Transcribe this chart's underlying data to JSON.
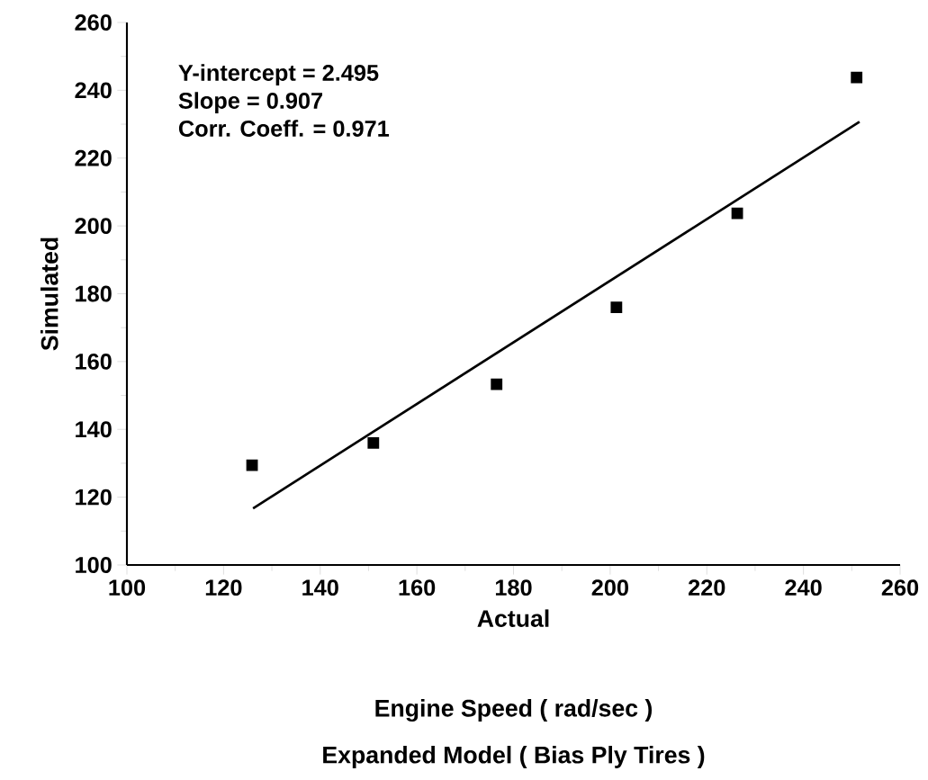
{
  "chart_data": {
    "type": "scatter",
    "title": "Expanded Model ( Bias Ply Tires )",
    "subtitle": "Engine Speed ( rad/sec )",
    "xlabel": "Actual",
    "ylabel": "Simulated",
    "annotations": [
      "Y-intercept = 2.495",
      "Slope = 0.907",
      "Corr. Coeff. = 0.971"
    ],
    "xlim": [
      100,
      260
    ],
    "ylim": [
      100,
      260
    ],
    "xticks": [
      100,
      120,
      140,
      160,
      180,
      200,
      220,
      240,
      260
    ],
    "yticks": [
      100,
      120,
      140,
      160,
      180,
      200,
      220,
      240,
      260
    ],
    "series": [
      {
        "marker": "square",
        "color": "#000000",
        "x": [
          125.9,
          151,
          176.5,
          201.3,
          226.3,
          251
        ],
        "values": [
          129.4,
          136,
          153.3,
          176,
          203.7,
          243.8
        ]
      },
      {
        "type": "line",
        "color": "#000000",
        "x": [
          126.1,
          251.6
        ],
        "values": [
          116.7,
          230.7
        ]
      }
    ]
  }
}
